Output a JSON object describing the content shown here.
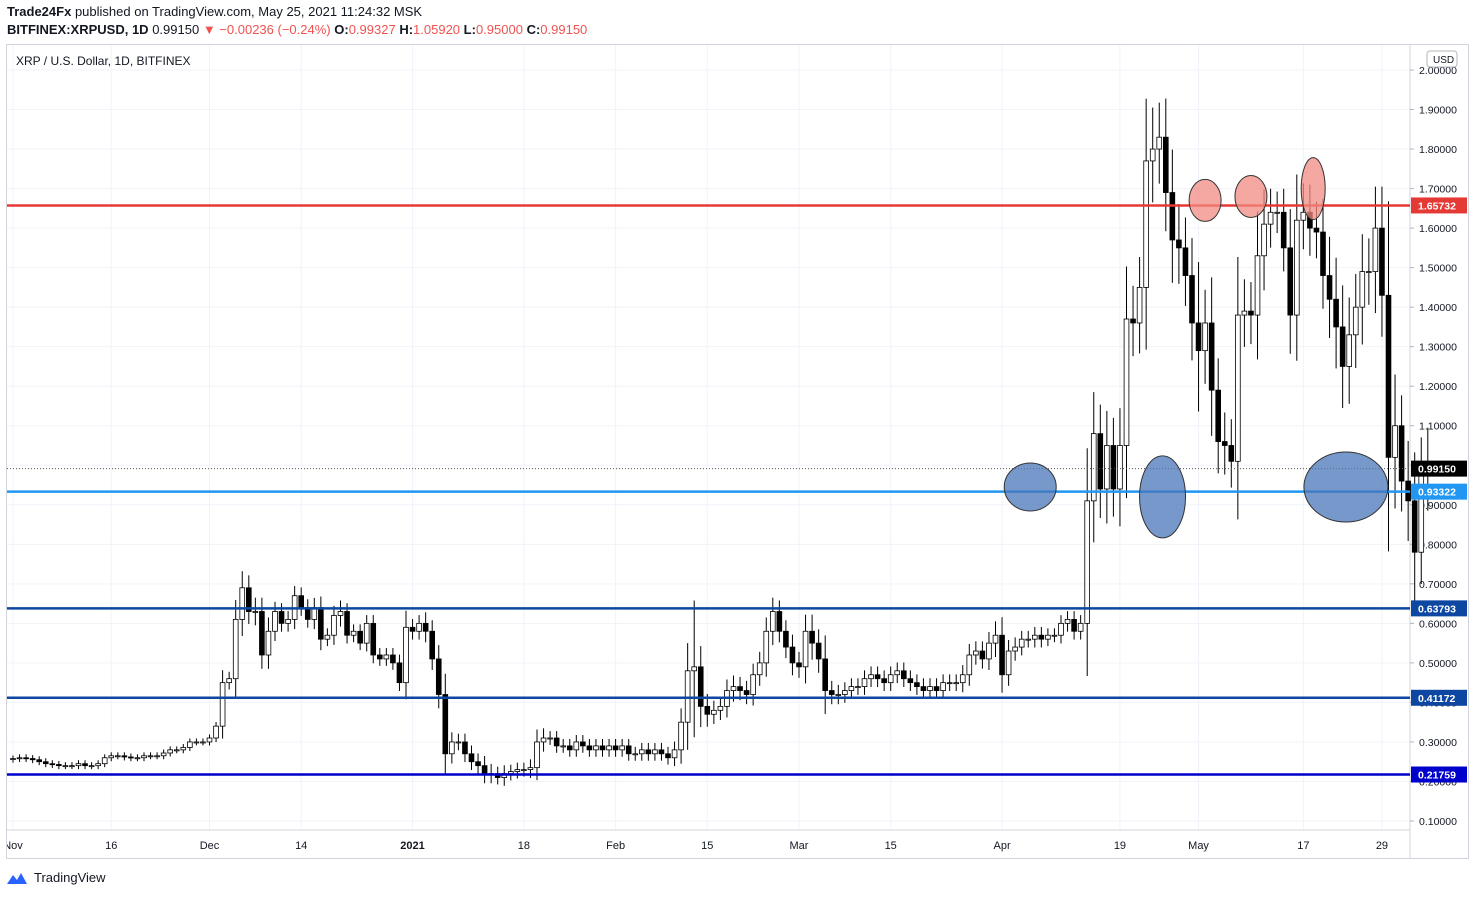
{
  "header": {
    "publisher": "Trade24Fx",
    "published_text": "published on TradingView.com, May 25, 2021 11:24:32 MSK",
    "symbol": "BITFINEX:XRPUSD, 1D",
    "last": "0.99150",
    "change": "▼ −0.00236 (−0.24%)",
    "o_label": "O:",
    "o": "0.99327",
    "h_label": "H:",
    "h": "1.05920",
    "l_label": "L:",
    "l": "0.95000",
    "c_label": "C:",
    "c": "0.99150"
  },
  "footer": {
    "brand": "TradingView",
    "logo_icon": "tradingview-logo-icon"
  },
  "chart_data": {
    "type": "candlestick",
    "title": "XRP / U.S. Dollar, 1D, BITFINEX",
    "currency_badge": "USD",
    "ylim": [
      0.075,
      2.02
    ],
    "y_ticks": [
      "2.00000",
      "1.90000",
      "1.80000",
      "1.70000",
      "1.60000",
      "1.50000",
      "1.40000",
      "1.30000",
      "1.20000",
      "1.10000",
      "1.00000",
      "0.90000",
      "0.80000",
      "0.70000",
      "0.60000",
      "0.50000",
      "0.40000",
      "0.30000",
      "0.20000",
      "0.10000"
    ],
    "x_ticks": [
      {
        "label": "Nov",
        "day": 0
      },
      {
        "label": "16",
        "day": 15
      },
      {
        "label": "Dec",
        "day": 30
      },
      {
        "label": "14",
        "day": 44
      },
      {
        "label": "2021",
        "day": 61,
        "bold": true
      },
      {
        "label": "18",
        "day": 78
      },
      {
        "label": "Feb",
        "day": 92
      },
      {
        "label": "15",
        "day": 106
      },
      {
        "label": "Mar",
        "day": 120
      },
      {
        "label": "15",
        "day": 134
      },
      {
        "label": "Apr",
        "day": 151
      },
      {
        "label": "19",
        "day": 169
      },
      {
        "label": "May",
        "day": 181
      },
      {
        "label": "17",
        "day": 197
      },
      {
        "label": "29",
        "day": 209
      }
    ],
    "horizontal_levels": [
      {
        "value": 1.65732,
        "label": "1.65732",
        "color": "#e53935"
      },
      {
        "value": 0.93322,
        "label": "0.93322",
        "color": "#2196f3"
      },
      {
        "value": 0.63793,
        "label": "0.63793",
        "color": "#0d47a1"
      },
      {
        "value": 0.41172,
        "label": "0.41172",
        "color": "#0d47a1"
      },
      {
        "value": 0.21759,
        "label": "0.21759",
        "color": "#0000cc"
      }
    ],
    "last_price": {
      "value": 0.9915,
      "label": "0.99150"
    },
    "zones": [
      {
        "type": "resistance",
        "day": 182.0,
        "value": 1.67,
        "color": "#f28b82"
      },
      {
        "type": "resistance",
        "day": 189.0,
        "value": 1.68,
        "color": "#f28b82"
      },
      {
        "type": "resistance",
        "day": 198.5,
        "value": 1.7,
        "color": "#f28b82"
      },
      {
        "type": "support",
        "day": 155.3,
        "value": 0.945,
        "color": "#4a76b8"
      },
      {
        "type": "support",
        "day": 175.5,
        "value": 0.92,
        "color": "#4a76b8"
      },
      {
        "type": "support",
        "day": 203.5,
        "value": 0.945,
        "color": "#4a76b8"
      }
    ],
    "close": [
      0.258,
      0.26,
      0.258,
      0.255,
      0.25,
      0.245,
      0.243,
      0.24,
      0.24,
      0.24,
      0.245,
      0.24,
      0.24,
      0.245,
      0.26,
      0.265,
      0.265,
      0.262,
      0.26,
      0.26,
      0.265,
      0.265,
      0.265,
      0.272,
      0.28,
      0.28,
      0.286,
      0.3,
      0.3,
      0.3,
      0.31,
      0.34,
      0.45,
      0.46,
      0.61,
      0.69,
      0.63,
      0.63,
      0.52,
      0.58,
      0.63,
      0.6,
      0.61,
      0.67,
      0.64,
      0.61,
      0.64,
      0.56,
      0.57,
      0.62,
      0.63,
      0.57,
      0.58,
      0.55,
      0.6,
      0.52,
      0.51,
      0.52,
      0.5,
      0.45,
      0.59,
      0.58,
      0.6,
      0.58,
      0.51,
      0.42,
      0.27,
      0.3,
      0.3,
      0.27,
      0.25,
      0.24,
      0.22,
      0.22,
      0.21,
      0.22,
      0.225,
      0.23,
      0.23,
      0.235,
      0.3,
      0.31,
      0.31,
      0.29,
      0.29,
      0.28,
      0.3,
      0.29,
      0.28,
      0.29,
      0.28,
      0.29,
      0.28,
      0.29,
      0.27,
      0.27,
      0.28,
      0.27,
      0.28,
      0.27,
      0.26,
      0.28,
      0.35,
      0.48,
      0.49,
      0.39,
      0.37,
      0.38,
      0.39,
      0.43,
      0.44,
      0.43,
      0.42,
      0.47,
      0.5,
      0.58,
      0.63,
      0.58,
      0.54,
      0.5,
      0.49,
      0.58,
      0.55,
      0.51,
      0.43,
      0.42,
      0.42,
      0.43,
      0.44,
      0.44,
      0.46,
      0.47,
      0.46,
      0.45,
      0.47,
      0.48,
      0.46,
      0.45,
      0.44,
      0.43,
      0.44,
      0.43,
      0.45,
      0.45,
      0.45,
      0.47,
      0.52,
      0.53,
      0.51,
      0.55,
      0.57,
      0.47,
      0.53,
      0.54,
      0.56,
      0.56,
      0.57,
      0.56,
      0.57,
      0.57,
      0.6,
      0.61,
      0.58,
      0.6,
      0.91,
      1.08,
      0.94,
      1.05,
      0.94,
      1.05,
      1.37,
      1.36,
      1.45,
      1.77,
      1.8,
      1.83,
      1.69,
      1.57,
      1.55,
      1.48,
      1.36,
      1.29,
      1.36,
      1.19,
      1.06,
      1.05,
      1.01,
      1.38,
      1.39,
      1.38,
      1.53,
      1.61,
      1.64,
      1.64,
      1.55,
      1.38,
      1.62,
      1.64,
      1.6,
      1.59,
      1.48,
      1.42,
      1.35,
      1.25,
      1.33,
      1.4,
      1.49,
      1.49,
      1.6,
      1.43,
      1.02,
      1.1,
      0.96,
      0.91,
      0.78,
      0.99,
      0.99
    ],
    "bands": [
      0.022,
      0.025,
      0.025,
      0.025,
      0.025,
      0.025,
      0.025,
      0.025,
      0.025,
      0.025,
      0.025,
      0.025,
      0.025,
      0.025,
      0.025,
      0.025,
      0.025,
      0.025,
      0.025,
      0.025,
      0.025,
      0.025,
      0.025,
      0.025,
      0.025,
      0.025,
      0.025,
      0.025,
      0.025,
      0.025,
      0.025,
      0.03,
      0.09,
      0.05,
      0.14,
      0.12,
      0.09,
      0.1,
      0.1,
      0.1,
      0.07,
      0.06,
      0.06,
      0.07,
      0.06,
      0.06,
      0.07,
      0.08,
      0.05,
      0.07,
      0.08,
      0.06,
      0.05,
      0.05,
      0.06,
      0.06,
      0.05,
      0.05,
      0.05,
      0.06,
      0.12,
      0.06,
      0.06,
      0.08,
      0.08,
      0.1,
      0.15,
      0.07,
      0.06,
      0.06,
      0.06,
      0.06,
      0.07,
      0.07,
      0.05,
      0.06,
      0.05,
      0.05,
      0.05,
      0.06,
      0.09,
      0.07,
      0.05,
      0.05,
      0.05,
      0.05,
      0.05,
      0.05,
      0.05,
      0.05,
      0.05,
      0.05,
      0.05,
      0.05,
      0.05,
      0.05,
      0.05,
      0.05,
      0.05,
      0.05,
      0.05,
      0.06,
      0.1,
      0.2,
      0.48,
      0.15,
      0.09,
      0.07,
      0.07,
      0.08,
      0.08,
      0.07,
      0.07,
      0.08,
      0.08,
      0.1,
      0.1,
      0.08,
      0.08,
      0.09,
      0.08,
      0.12,
      0.12,
      0.1,
      0.17,
      0.07,
      0.07,
      0.06,
      0.06,
      0.06,
      0.06,
      0.06,
      0.06,
      0.06,
      0.06,
      0.06,
      0.06,
      0.06,
      0.06,
      0.06,
      0.06,
      0.06,
      0.06,
      0.06,
      0.06,
      0.07,
      0.08,
      0.07,
      0.07,
      0.08,
      0.1,
      0.13,
      0.08,
      0.07,
      0.06,
      0.06,
      0.06,
      0.06,
      0.05,
      0.05,
      0.06,
      0.06,
      0.06,
      0.06,
      0.38,
      0.3,
      0.21,
      0.25,
      0.2,
      0.27,
      0.38,
      0.24,
      0.22,
      0.45,
      0.3,
      0.25,
      0.28,
      0.31,
      0.26,
      0.22,
      0.27,
      0.44,
      0.24,
      0.33,
      0.23,
      0.21,
      0.19,
      0.42,
      0.23,
      0.21,
      0.32,
      0.25,
      0.17,
      0.15,
      0.17,
      0.28,
      0.33,
      0.21,
      0.2,
      0.19,
      0.24,
      0.28,
      0.3,
      0.3,
      0.27,
      0.24,
      0.27,
      0.24,
      0.3,
      0.3,
      0.68,
      0.37,
      0.22,
      0.29,
      0.35,
      0.23,
      0.3
    ]
  }
}
